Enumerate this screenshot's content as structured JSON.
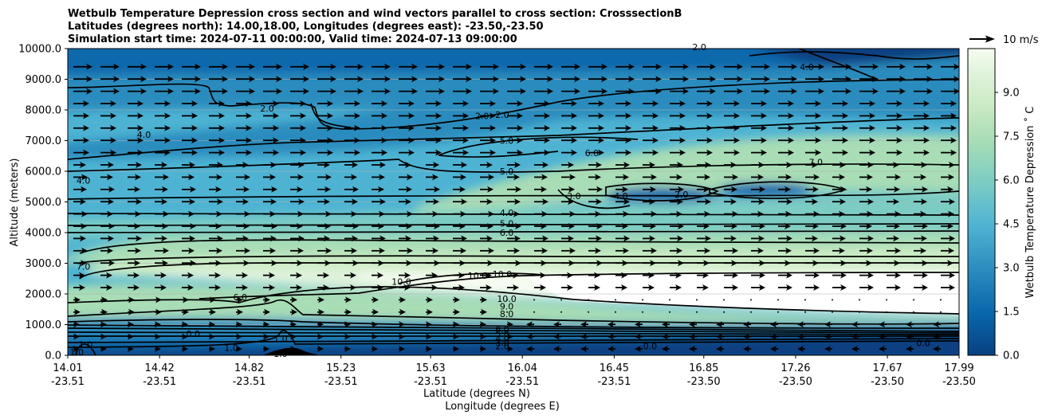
{
  "chart_data": {
    "type": "heatmap",
    "title_lines": [
      "Wetbulb Temperature Depression cross section and wind vectors parallel to cross section: CrosssectionB",
      "Latitudes (degrees north): 14.00,18.00, Longitudes (degrees east): -23.50,-23.50",
      "Simulation start time: 2024-07-11 00:00:00, Valid time: 2024-07-13 09:00:00"
    ],
    "ylabel": "Altitude (meters)",
    "xlabel_lat": "Latitude (degrees N)",
    "xlabel_lon": "Longitude (degrees E)",
    "ylim": [
      0,
      10000
    ],
    "yticks": [
      "0.0",
      "1000.0",
      "2000.0",
      "3000.0",
      "4000.0",
      "5000.0",
      "6000.0",
      "7000.0",
      "8000.0",
      "9000.0",
      "10000.0"
    ],
    "xlim": [
      14.01,
      17.99
    ],
    "xticks_lat": [
      "14.01",
      "14.42",
      "14.82",
      "15.23",
      "15.63",
      "16.04",
      "16.45",
      "16.85",
      "17.26",
      "17.67",
      "17.99"
    ],
    "xticks_lon": [
      "-23.51",
      "-23.51",
      "-23.51",
      "-23.51",
      "-23.51",
      "-23.51",
      "-23.51",
      "-23.50",
      "-23.50",
      "-23.50",
      "-23.50"
    ],
    "xtick_values": [
      14.01,
      14.42,
      14.82,
      15.23,
      15.63,
      16.04,
      16.45,
      16.85,
      17.26,
      17.67,
      17.99
    ],
    "colorbar": {
      "label": "Wetbulb Temperature Depression ˚ C",
      "range": [
        0,
        10.5
      ],
      "ticks": [
        "0.0",
        "1.5",
        "3.0",
        "4.5",
        "6.0",
        "7.5",
        "9.0"
      ],
      "tick_values": [
        0,
        1.5,
        3.0,
        4.5,
        6.0,
        7.5,
        9.0
      ],
      "colors": [
        "#084081",
        "#0868ac",
        "#2b8cbe",
        "#4eb3d3",
        "#7bccc4",
        "#a8ddb5",
        "#ccebc5",
        "#e0f3db",
        "#f7fcf0"
      ]
    },
    "quiver_key": "10 m/s",
    "contour_labels": [
      {
        "text": "2.0",
        "lat": 14.9,
        "alt": 8050
      },
      {
        "text": "2.0",
        "lat": 15.86,
        "alt": 7800
      },
      {
        "text": "2.0",
        "lat": 15.95,
        "alt": 7850
      },
      {
        "text": "2.0",
        "lat": 16.75,
        "alt": 5250
      },
      {
        "text": "2.0",
        "lat": 16.83,
        "alt": 10050
      },
      {
        "text": "4.0",
        "lat": 17.31,
        "alt": 9400
      },
      {
        "text": "4.0",
        "lat": 14.35,
        "alt": 7200
      },
      {
        "text": "4.0",
        "lat": 14.08,
        "alt": 5700
      },
      {
        "text": "4.0",
        "lat": 15.97,
        "alt": 4650
      },
      {
        "text": "5.0",
        "lat": 15.97,
        "alt": 7000
      },
      {
        "text": "5.0",
        "lat": 15.97,
        "alt": 6000
      },
      {
        "text": "5.0",
        "lat": 15.97,
        "alt": 4300
      },
      {
        "text": "6.0",
        "lat": 16.35,
        "alt": 6600
      },
      {
        "text": "6.0",
        "lat": 15.97,
        "alt": 4000
      },
      {
        "text": "6.0",
        "lat": 14.78,
        "alt": 1900
      },
      {
        "text": "7.0",
        "lat": 17.35,
        "alt": 6300
      },
      {
        "text": "7.0",
        "lat": 14.08,
        "alt": 2900
      },
      {
        "text": "3.0",
        "lat": 16.27,
        "alt": 5200
      },
      {
        "text": "4.0",
        "lat": 16.48,
        "alt": 5200
      },
      {
        "text": "10.0",
        "lat": 15.84,
        "alt": 2600
      },
      {
        "text": "10.0",
        "lat": 15.95,
        "alt": 2650
      },
      {
        "text": "10.0",
        "lat": 15.5,
        "alt": 2400
      },
      {
        "text": "10.0",
        "lat": 15.97,
        "alt": 1850
      },
      {
        "text": "9.0",
        "lat": 15.97,
        "alt": 1600
      },
      {
        "text": "8.0",
        "lat": 15.97,
        "alt": 1350
      },
      {
        "text": "6.0",
        "lat": 15.95,
        "alt": 850
      },
      {
        "text": "5.0",
        "lat": 15.95,
        "alt": 700
      },
      {
        "text": "4.0",
        "lat": 15.95,
        "alt": 550
      },
      {
        "text": "3.0",
        "lat": 15.95,
        "alt": 420
      },
      {
        "text": "2.0",
        "lat": 15.95,
        "alt": 300
      },
      {
        "text": "1.0",
        "lat": 14.09,
        "alt": 350
      },
      {
        "text": "1.0",
        "lat": 14.05,
        "alt": 100
      },
      {
        "text": "0.0",
        "lat": 14.57,
        "alt": 700
      },
      {
        "text": "1.0",
        "lat": 14.74,
        "alt": 250
      },
      {
        "text": "1.0",
        "lat": 14.96,
        "alt": 550
      },
      {
        "text": "1.0",
        "lat": 14.96,
        "alt": 50
      },
      {
        "text": "0.0",
        "lat": 16.61,
        "alt": 300
      },
      {
        "text": "0.0",
        "lat": 17.83,
        "alt": 400
      }
    ]
  }
}
